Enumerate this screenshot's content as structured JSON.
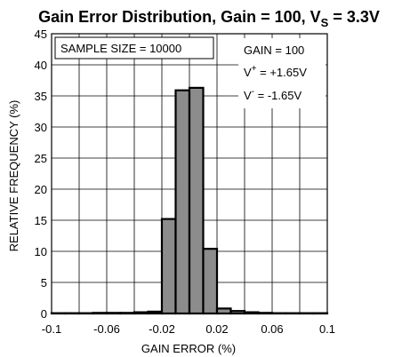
{
  "chart_data": {
    "type": "bar",
    "title": {
      "main": "Gain Error Distribution, Gain = 100, V",
      "sub": "S",
      "tail": " = 3.3V"
    },
    "xlabel": "GAIN ERROR (%)",
    "ylabel": "RELATIVE FREQUENCY (%)",
    "xlim": [
      -0.1,
      0.1
    ],
    "ylim": [
      0,
      45
    ],
    "grid": true,
    "x_tick_values": [
      -0.1,
      -0.06,
      -0.02,
      0.02,
      0.06,
      0.1
    ],
    "x_tick_labels": [
      "-0.1",
      "-0.06",
      "-0.02",
      "0.02",
      "0.06",
      "0.1"
    ],
    "y_tick_values": [
      0,
      5,
      10,
      15,
      20,
      25,
      30,
      35,
      40,
      45
    ],
    "y_tick_labels": [
      "0",
      "5",
      "10",
      "15",
      "20",
      "25",
      "30",
      "35",
      "40",
      "45"
    ],
    "bin_width": 0.01,
    "bins": [
      {
        "x_start": -0.1,
        "value": 0.05
      },
      {
        "x_start": -0.09,
        "value": 0.05
      },
      {
        "x_start": -0.08,
        "value": 0.05
      },
      {
        "x_start": -0.07,
        "value": 0.1
      },
      {
        "x_start": -0.06,
        "value": 0.1
      },
      {
        "x_start": -0.05,
        "value": 0.1
      },
      {
        "x_start": -0.04,
        "value": 0.2
      },
      {
        "x_start": -0.03,
        "value": 0.3
      },
      {
        "x_start": -0.02,
        "value": 15.2
      },
      {
        "x_start": -0.01,
        "value": 35.9
      },
      {
        "x_start": 0.0,
        "value": 36.3
      },
      {
        "x_start": 0.01,
        "value": 10.4
      },
      {
        "x_start": 0.02,
        "value": 0.8
      },
      {
        "x_start": 0.03,
        "value": 0.4
      },
      {
        "x_start": 0.04,
        "value": 0.2
      },
      {
        "x_start": 0.05,
        "value": 0.1
      },
      {
        "x_start": 0.06,
        "value": 0.05
      },
      {
        "x_start": 0.07,
        "value": 0.05
      },
      {
        "x_start": 0.08,
        "value": 0.05
      },
      {
        "x_start": 0.09,
        "value": 0.05
      }
    ],
    "bar_color": "#8c8c8c",
    "annotations": {
      "sample_size": "SAMPLE SIZE = 10000",
      "gain": "GAIN = 100",
      "vplus_base": "V",
      "vplus_sup": "+",
      "vplus_value": " = +1.65V",
      "vminus_base": "V",
      "vminus_sup": "-",
      "vminus_value": " = -1.65V"
    }
  }
}
